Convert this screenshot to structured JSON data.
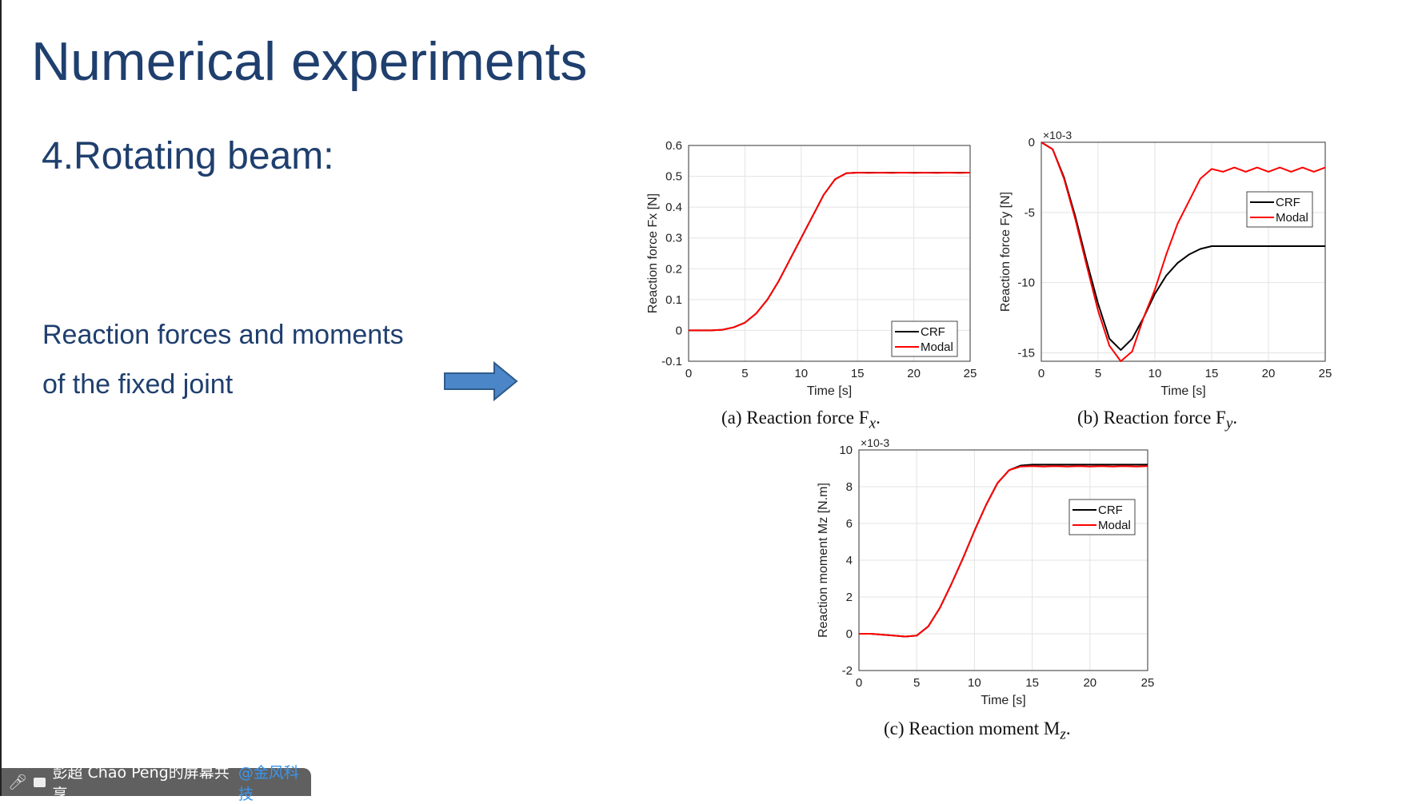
{
  "slide": {
    "title": "Numerical experiments",
    "subtitle": "4.Rotating beam:",
    "text_line1": "Reaction forces and moments",
    "text_line2": "of the fixed joint"
  },
  "share_bar": {
    "presenter": "彭超 Chao Peng的屏幕共享",
    "org": "@金风科技",
    "icons": [
      "mic-muted-icon",
      "screen-share-icon"
    ]
  },
  "colors": {
    "title": "#1f3f6e",
    "arrow": "#4a86c8",
    "crf": "#000000",
    "modal": "#ff0000"
  },
  "chart_data": [
    {
      "type": "line",
      "caption": "(a) Reaction force F",
      "caption_sub": "x",
      "xlabel": "Time [s]",
      "ylabel": "Reaction force Fx [N]",
      "exponent": "",
      "xlim": [
        0,
        25
      ],
      "ylim": [
        -0.1,
        0.6
      ],
      "xticks": [
        "0",
        "5",
        "10",
        "15",
        "20",
        "25"
      ],
      "yticks": [
        "-0.1",
        "0",
        "0.1",
        "0.2",
        "0.3",
        "0.4",
        "0.5",
        "0.6"
      ],
      "grid": true,
      "legend": "bottom-right",
      "x": [
        0,
        1,
        2,
        3,
        4,
        5,
        6,
        7,
        8,
        9,
        10,
        11,
        12,
        13,
        14,
        15,
        16,
        17,
        18,
        19,
        20,
        21,
        22,
        23,
        24,
        25
      ],
      "series": [
        {
          "name": "CRF",
          "values": [
            0,
            0,
            0,
            0.002,
            0.01,
            0.025,
            0.055,
            0.1,
            0.16,
            0.23,
            0.3,
            0.37,
            0.44,
            0.49,
            0.51,
            0.512,
            0.512,
            0.512,
            0.512,
            0.512,
            0.512,
            0.512,
            0.512,
            0.512,
            0.512,
            0.512
          ]
        },
        {
          "name": "Modal",
          "values": [
            0,
            0,
            0,
            0.002,
            0.01,
            0.025,
            0.055,
            0.1,
            0.16,
            0.23,
            0.3,
            0.37,
            0.44,
            0.49,
            0.51,
            0.512,
            0.511,
            0.512,
            0.511,
            0.512,
            0.511,
            0.512,
            0.511,
            0.512,
            0.511,
            0.512
          ]
        }
      ]
    },
    {
      "type": "line",
      "caption": "(b) Reaction force F",
      "caption_sub": "y",
      "xlabel": "Time [s]",
      "ylabel": "Reaction force Fy [N]",
      "exponent": "×10-3",
      "xlim": [
        0,
        25
      ],
      "ylim": [
        -15.6,
        0
      ],
      "xticks": [
        "0",
        "5",
        "10",
        "15",
        "20",
        "25"
      ],
      "yticks": [
        "-15",
        "-10",
        "-5",
        "0"
      ],
      "grid": true,
      "legend": "top-right",
      "x": [
        0,
        1,
        2,
        3,
        4,
        5,
        6,
        7,
        8,
        9,
        10,
        11,
        12,
        13,
        14,
        15,
        16,
        17,
        18,
        19,
        20,
        21,
        22,
        23,
        24,
        25
      ],
      "series": [
        {
          "name": "CRF",
          "values": [
            0,
            -0.5,
            -2.5,
            -5.3,
            -8.5,
            -11.5,
            -14,
            -14.8,
            -14,
            -12.5,
            -10.8,
            -9.5,
            -8.6,
            -8,
            -7.6,
            -7.4,
            -7.4,
            -7.4,
            -7.4,
            -7.4,
            -7.4,
            -7.4,
            -7.4,
            -7.4,
            -7.4,
            -7.4
          ]
        },
        {
          "name": "Modal",
          "values": [
            0,
            -0.5,
            -2.6,
            -5.5,
            -8.8,
            -12,
            -14.5,
            -15.6,
            -14.9,
            -12.5,
            -10.5,
            -8,
            -5.8,
            -4.2,
            -2.6,
            -1.9,
            -2.1,
            -1.8,
            -2.1,
            -1.8,
            -2.1,
            -1.8,
            -2.1,
            -1.8,
            -2.1,
            -1.8
          ]
        }
      ]
    },
    {
      "type": "line",
      "caption": "(c) Reaction moment M",
      "caption_sub": "z",
      "xlabel": "Time [s]",
      "ylabel": "Reaction moment Mz [N.m]",
      "exponent": "×10-3",
      "xlim": [
        0,
        25
      ],
      "ylim": [
        -2,
        10
      ],
      "xticks": [
        "0",
        "5",
        "10",
        "15",
        "20",
        "25"
      ],
      "yticks": [
        "-2",
        "0",
        "2",
        "4",
        "6",
        "8",
        "10"
      ],
      "grid": true,
      "legend": "top-right",
      "x": [
        0,
        1,
        2,
        3,
        4,
        5,
        6,
        7,
        8,
        9,
        10,
        11,
        12,
        13,
        14,
        15,
        16,
        17,
        18,
        19,
        20,
        21,
        22,
        23,
        24,
        25
      ],
      "series": [
        {
          "name": "CRF",
          "values": [
            0,
            0,
            -0.05,
            -0.1,
            -0.15,
            -0.1,
            0.4,
            1.4,
            2.7,
            4.1,
            5.6,
            7,
            8.2,
            8.9,
            9.15,
            9.2,
            9.2,
            9.2,
            9.2,
            9.2,
            9.2,
            9.2,
            9.2,
            9.2,
            9.2,
            9.2
          ]
        },
        {
          "name": "Modal",
          "values": [
            0,
            0,
            -0.05,
            -0.1,
            -0.15,
            -0.1,
            0.4,
            1.4,
            2.7,
            4.1,
            5.6,
            7,
            8.2,
            8.9,
            9.1,
            9.12,
            9.1,
            9.12,
            9.1,
            9.12,
            9.1,
            9.12,
            9.1,
            9.12,
            9.1,
            9.12
          ]
        }
      ]
    }
  ]
}
